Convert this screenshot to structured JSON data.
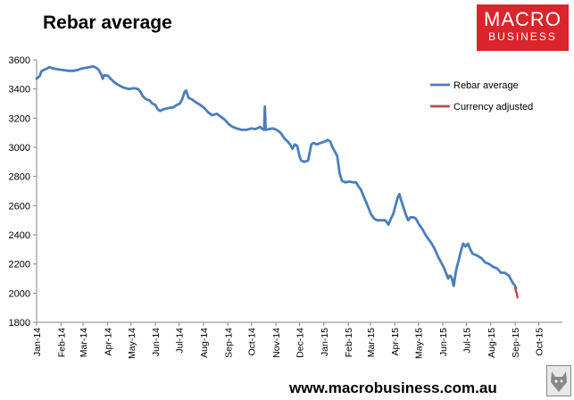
{
  "header": {
    "title": "Rebar average"
  },
  "logo": {
    "line1": "MACRO",
    "line2": "BUSINESS",
    "bg_color": "#d9252b"
  },
  "footer": {
    "url": "www.macrobusiness.com.au"
  },
  "chart_data": {
    "type": "line",
    "title": "Rebar average",
    "xlabel": "",
    "ylabel": "",
    "ylim": [
      1800,
      3600
    ],
    "yticks": [
      1800,
      2000,
      2200,
      2400,
      2600,
      2800,
      3000,
      3200,
      3400,
      3600
    ],
    "x_tick_labels": [
      "Jan-14",
      "Feb-14",
      "Mar-14",
      "Apr-14",
      "May-14",
      "Jun-14",
      "Jul-14",
      "Aug-14",
      "Sep-14",
      "Oct-14",
      "Nov-14",
      "Dec-14",
      "Jan-15",
      "Feb-15",
      "Mar-15",
      "Apr-15",
      "May-15",
      "Jun-15",
      "Jul-15",
      "Aug-15",
      "Sep-15",
      "Oct-15"
    ],
    "x_tick_dates": [
      "2014-01-01",
      "2014-02-01",
      "2014-03-01",
      "2014-04-01",
      "2014-05-01",
      "2014-06-01",
      "2014-07-01",
      "2014-08-01",
      "2014-09-01",
      "2014-10-01",
      "2014-11-01",
      "2014-12-01",
      "2015-01-01",
      "2015-02-01",
      "2015-03-01",
      "2015-04-01",
      "2015-05-01",
      "2015-06-01",
      "2015-07-01",
      "2015-08-01",
      "2015-09-01",
      "2015-10-01"
    ],
    "xlim": [
      "2014-01-01",
      "2015-10-31"
    ],
    "grid": false,
    "legend_position": "top-right",
    "series": [
      {
        "name": "Rebar average",
        "color": "#4a7ebb",
        "points": [
          [
            "2014-01-01",
            3470
          ],
          [
            "2014-01-03",
            3480
          ],
          [
            "2014-01-05",
            3490
          ],
          [
            "2014-01-07",
            3520
          ],
          [
            "2014-01-10",
            3530
          ],
          [
            "2014-01-14",
            3540
          ],
          [
            "2014-01-17",
            3550
          ],
          [
            "2014-01-20",
            3545
          ],
          [
            "2014-01-23",
            3540
          ],
          [
            "2014-01-28",
            3535
          ],
          [
            "2014-02-03",
            3530
          ],
          [
            "2014-02-10",
            3525
          ],
          [
            "2014-02-17",
            3525
          ],
          [
            "2014-02-22",
            3530
          ],
          [
            "2014-02-27",
            3540
          ],
          [
            "2014-03-04",
            3545
          ],
          [
            "2014-03-09",
            3550
          ],
          [
            "2014-03-14",
            3555
          ],
          [
            "2014-03-18",
            3545
          ],
          [
            "2014-03-21",
            3530
          ],
          [
            "2014-03-24",
            3500
          ],
          [
            "2014-03-26",
            3470
          ],
          [
            "2014-03-28",
            3495
          ],
          [
            "2014-04-02",
            3490
          ],
          [
            "2014-04-05",
            3470
          ],
          [
            "2014-04-09",
            3450
          ],
          [
            "2014-04-14",
            3430
          ],
          [
            "2014-04-21",
            3410
          ],
          [
            "2014-04-28",
            3400
          ],
          [
            "2014-05-05",
            3405
          ],
          [
            "2014-05-10",
            3400
          ],
          [
            "2014-05-13",
            3380
          ],
          [
            "2014-05-16",
            3350
          ],
          [
            "2014-05-20",
            3330
          ],
          [
            "2014-05-25",
            3320
          ],
          [
            "2014-05-28",
            3300
          ],
          [
            "2014-06-01",
            3290
          ],
          [
            "2014-06-04",
            3260
          ],
          [
            "2014-06-07",
            3250
          ],
          [
            "2014-06-11",
            3260
          ],
          [
            "2014-06-18",
            3270
          ],
          [
            "2014-06-24",
            3275
          ],
          [
            "2014-06-28",
            3290
          ],
          [
            "2014-07-02",
            3300
          ],
          [
            "2014-07-05",
            3330
          ],
          [
            "2014-07-08",
            3380
          ],
          [
            "2014-07-10",
            3390
          ],
          [
            "2014-07-13",
            3340
          ],
          [
            "2014-07-17",
            3330
          ],
          [
            "2014-07-22",
            3310
          ],
          [
            "2014-07-28",
            3290
          ],
          [
            "2014-08-02",
            3270
          ],
          [
            "2014-08-07",
            3240
          ],
          [
            "2014-08-12",
            3220
          ],
          [
            "2014-08-18",
            3230
          ],
          [
            "2014-08-23",
            3210
          ],
          [
            "2014-08-28",
            3190
          ],
          [
            "2014-09-02",
            3160
          ],
          [
            "2014-09-07",
            3140
          ],
          [
            "2014-09-12",
            3130
          ],
          [
            "2014-09-18",
            3120
          ],
          [
            "2014-09-25",
            3120
          ],
          [
            "2014-10-01",
            3130
          ],
          [
            "2014-10-06",
            3125
          ],
          [
            "2014-10-12",
            3140
          ],
          [
            "2014-10-15",
            3125
          ],
          [
            "2014-10-17",
            3120
          ],
          [
            "2014-10-18",
            3280
          ],
          [
            "2014-10-19",
            3120
          ],
          [
            "2014-10-23",
            3125
          ],
          [
            "2014-10-28",
            3130
          ],
          [
            "2014-11-02",
            3120
          ],
          [
            "2014-11-07",
            3100
          ],
          [
            "2014-11-12",
            3060
          ],
          [
            "2014-11-16",
            3040
          ],
          [
            "2014-11-19",
            3020
          ],
          [
            "2014-11-22",
            2990
          ],
          [
            "2014-11-25",
            3020
          ],
          [
            "2014-11-28",
            3010
          ],
          [
            "2014-12-01",
            2940
          ],
          [
            "2014-12-03",
            2910
          ],
          [
            "2014-12-07",
            2900
          ],
          [
            "2014-12-12",
            2910
          ],
          [
            "2014-12-16",
            3020
          ],
          [
            "2014-12-19",
            3030
          ],
          [
            "2014-12-23",
            3020
          ],
          [
            "2014-12-28",
            3030
          ],
          [
            "2015-01-02",
            3040
          ],
          [
            "2015-01-06",
            3050
          ],
          [
            "2015-01-09",
            3040
          ],
          [
            "2015-01-12",
            3000
          ],
          [
            "2015-01-15",
            2970
          ],
          [
            "2015-01-18",
            2940
          ],
          [
            "2015-01-21",
            2820
          ],
          [
            "2015-01-24",
            2770
          ],
          [
            "2015-01-28",
            2760
          ],
          [
            "2015-02-02",
            2765
          ],
          [
            "2015-02-07",
            2760
          ],
          [
            "2015-02-11",
            2760
          ],
          [
            "2015-02-13",
            2740
          ],
          [
            "2015-02-17",
            2710
          ],
          [
            "2015-02-20",
            2670
          ],
          [
            "2015-02-24",
            2620
          ],
          [
            "2015-02-27",
            2580
          ],
          [
            "2015-03-02",
            2540
          ],
          [
            "2015-03-06",
            2510
          ],
          [
            "2015-03-10",
            2500
          ],
          [
            "2015-03-15",
            2500
          ],
          [
            "2015-03-20",
            2500
          ],
          [
            "2015-03-24",
            2470
          ],
          [
            "2015-03-27",
            2510
          ],
          [
            "2015-03-30",
            2540
          ],
          [
            "2015-04-02",
            2600
          ],
          [
            "2015-04-05",
            2660
          ],
          [
            "2015-04-07",
            2680
          ],
          [
            "2015-04-09",
            2640
          ],
          [
            "2015-04-12",
            2590
          ],
          [
            "2015-04-15",
            2540
          ],
          [
            "2015-04-18",
            2500
          ],
          [
            "2015-04-21",
            2520
          ],
          [
            "2015-04-25",
            2520
          ],
          [
            "2015-04-28",
            2510
          ],
          [
            "2015-05-02",
            2470
          ],
          [
            "2015-05-06",
            2440
          ],
          [
            "2015-05-10",
            2400
          ],
          [
            "2015-05-14",
            2370
          ],
          [
            "2015-05-18",
            2340
          ],
          [
            "2015-05-22",
            2300
          ],
          [
            "2015-05-26",
            2250
          ],
          [
            "2015-05-30",
            2210
          ],
          [
            "2015-06-02",
            2180
          ],
          [
            "2015-06-05",
            2140
          ],
          [
            "2015-06-08",
            2100
          ],
          [
            "2015-06-10",
            2120
          ],
          [
            "2015-06-12",
            2110
          ],
          [
            "2015-06-15",
            2050
          ],
          [
            "2015-06-18",
            2160
          ],
          [
            "2015-06-21",
            2220
          ],
          [
            "2015-06-24",
            2290
          ],
          [
            "2015-06-27",
            2340
          ],
          [
            "2015-06-30",
            2320
          ],
          [
            "2015-07-03",
            2340
          ],
          [
            "2015-07-06",
            2300
          ],
          [
            "2015-07-09",
            2270
          ],
          [
            "2015-07-14",
            2260
          ],
          [
            "2015-07-20",
            2240
          ],
          [
            "2015-07-25",
            2210
          ],
          [
            "2015-07-30",
            2200
          ],
          [
            "2015-08-04",
            2180
          ],
          [
            "2015-08-09",
            2170
          ],
          [
            "2015-08-14",
            2140
          ],
          [
            "2015-08-19",
            2140
          ],
          [
            "2015-08-24",
            2120
          ],
          [
            "2015-08-29",
            2070
          ],
          [
            "2015-09-01",
            2050
          ],
          [
            "2015-09-02",
            2030
          ]
        ]
      },
      {
        "name": "Currency adjusted",
        "color": "#be4b48",
        "points": [
          [
            "2015-09-01",
            2040
          ],
          [
            "2015-09-02",
            2010
          ],
          [
            "2015-09-03",
            2000
          ],
          [
            "2015-09-04",
            1970
          ]
        ]
      }
    ]
  }
}
